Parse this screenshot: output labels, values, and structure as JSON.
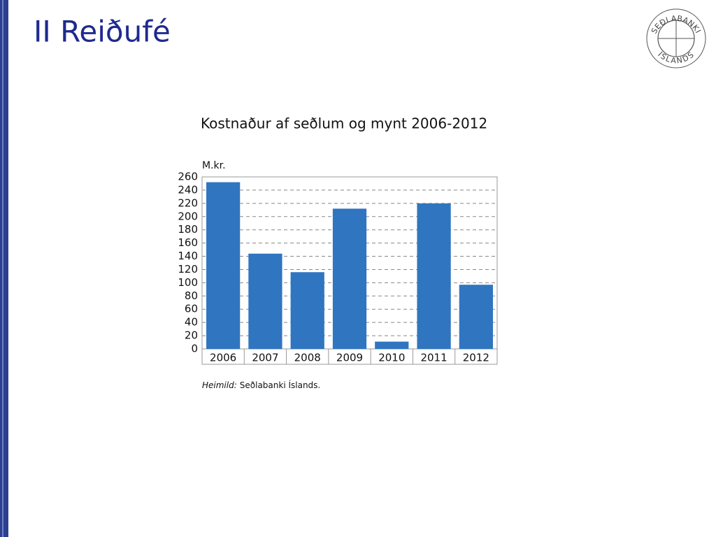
{
  "slide_title": "II Reiðufé",
  "logo": {
    "top": "SEÐLABANKI",
    "bottom": "ÍSLANDS"
  },
  "chart_data": {
    "type": "bar",
    "title": "Kostnaður af seðlum og mynt 2006-2012",
    "y_label": "M.kr.",
    "source_label": "Heimild:",
    "source": "Seðlabanki Íslands.",
    "categories": [
      "2006",
      "2007",
      "2008",
      "2009",
      "2010",
      "2011",
      "2012"
    ],
    "values": [
      252,
      144,
      116,
      212,
      11,
      220,
      97
    ],
    "color": "#3075c0",
    "ylim": [
      0,
      260
    ],
    "yticks": [
      0,
      20,
      40,
      60,
      80,
      100,
      120,
      140,
      160,
      180,
      200,
      220,
      240,
      260
    ],
    "grid": true
  }
}
